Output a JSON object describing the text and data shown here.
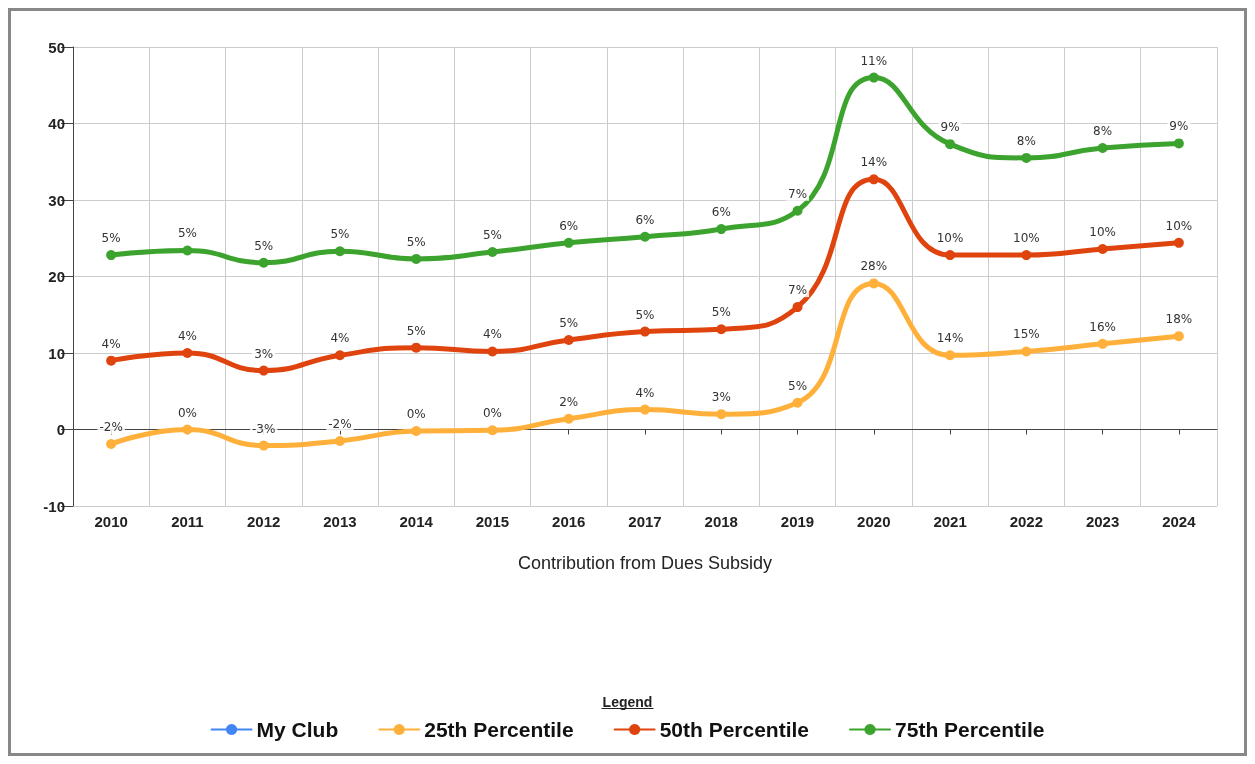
{
  "chart_data": {
    "type": "line",
    "xlabel": "Contribution from Dues Subsidy",
    "legend_title": "Legend",
    "categories": [
      "2010",
      "2011",
      "2012",
      "2013",
      "2014",
      "2015",
      "2016",
      "2017",
      "2018",
      "2019",
      "2020",
      "2021",
      "2022",
      "2023",
      "2024"
    ],
    "ylim": [
      -10,
      50
    ],
    "yticks": [
      -10,
      0,
      10,
      20,
      30,
      40,
      50
    ],
    "grid": true,
    "legend": "bottom",
    "marker": "circle",
    "line_style": "solid",
    "series": [
      {
        "name": "My Club",
        "color": "#4285f4",
        "values": [
          null,
          null,
          null,
          null,
          null,
          null,
          null,
          null,
          null,
          null,
          null,
          null,
          null,
          null,
          null
        ]
      },
      {
        "name": "25th Percentile",
        "color": "#ffb03b",
        "values": [
          -1.9,
          0,
          -2.1,
          -1.5,
          -0.2,
          -0.1,
          1.4,
          2.6,
          2.0,
          3.5,
          19.1,
          9.7,
          10.2,
          11.2,
          12.2
        ]
      },
      {
        "name": "50th Percentile",
        "color": "#e0440e",
        "values": [
          9.0,
          10.0,
          7.7,
          9.7,
          10.7,
          10.2,
          11.7,
          12.8,
          13.1,
          16.0,
          32.7,
          22.8,
          22.8,
          23.6,
          24.4
        ]
      },
      {
        "name": "75th Percentile",
        "color": "#3ca32e",
        "values": [
          22.8,
          23.4,
          21.8,
          23.3,
          22.3,
          23.2,
          24.4,
          25.2,
          26.2,
          28.6,
          46.0,
          37.3,
          35.5,
          36.8,
          37.4
        ]
      }
    ],
    "annotations": [
      {
        "text": "-2%",
        "x": "2010",
        "y": -1.9
      },
      {
        "text": "0%",
        "x": "2011",
        "y": 0
      },
      {
        "text": "-3%",
        "x": "2012",
        "y": -2.1
      },
      {
        "text": "-2%",
        "x": "2013",
        "y": -1.5
      },
      {
        "text": "0%",
        "x": "2014",
        "y": -0.2
      },
      {
        "text": "0%",
        "x": "2015",
        "y": -0.1
      },
      {
        "text": "2%",
        "x": "2016",
        "y": 1.4
      },
      {
        "text": "4%",
        "x": "2017",
        "y": 2.6
      },
      {
        "text": "3%",
        "x": "2018",
        "y": 2.0
      },
      {
        "text": "5%",
        "x": "2019",
        "y": 3.5
      },
      {
        "text": "28%",
        "x": "2020",
        "y": 19.1
      },
      {
        "text": "14%",
        "x": "2021",
        "y": 9.7
      },
      {
        "text": "15%",
        "x": "2022",
        "y": 10.2
      },
      {
        "text": "16%",
        "x": "2023",
        "y": 11.2
      },
      {
        "text": "18%",
        "x": "2024",
        "y": 12.2
      },
      {
        "text": "4%",
        "x": "2010",
        "y": 9.0
      },
      {
        "text": "4%",
        "x": "2011",
        "y": 10.0
      },
      {
        "text": "3%",
        "x": "2012",
        "y": 7.7
      },
      {
        "text": "4%",
        "x": "2013",
        "y": 9.7
      },
      {
        "text": "5%",
        "x": "2014",
        "y": 10.7
      },
      {
        "text": "4%",
        "x": "2015",
        "y": 10.2
      },
      {
        "text": "5%",
        "x": "2016",
        "y": 11.7
      },
      {
        "text": "5%",
        "x": "2017",
        "y": 12.8
      },
      {
        "text": "5%",
        "x": "2018",
        "y": 13.1
      },
      {
        "text": "7%",
        "x": "2019",
        "y": 16.0
      },
      {
        "text": "14%",
        "x": "2020",
        "y": 32.7
      },
      {
        "text": "10%",
        "x": "2021",
        "y": 22.8
      },
      {
        "text": "10%",
        "x": "2022",
        "y": 22.8
      },
      {
        "text": "10%",
        "x": "2023",
        "y": 23.6
      },
      {
        "text": "10%",
        "x": "2024",
        "y": 24.4
      },
      {
        "text": "5%",
        "x": "2010",
        "y": 22.8
      },
      {
        "text": "5%",
        "x": "2011",
        "y": 23.4
      },
      {
        "text": "5%",
        "x": "2012",
        "y": 21.8
      },
      {
        "text": "5%",
        "x": "2013",
        "y": 23.3
      },
      {
        "text": "5%",
        "x": "2014",
        "y": 22.3
      },
      {
        "text": "5%",
        "x": "2015",
        "y": 23.2
      },
      {
        "text": "6%",
        "x": "2016",
        "y": 24.4
      },
      {
        "text": "6%",
        "x": "2017",
        "y": 25.2
      },
      {
        "text": "6%",
        "x": "2018",
        "y": 26.2
      },
      {
        "text": "7%",
        "x": "2019",
        "y": 28.6
      },
      {
        "text": "11%",
        "x": "2020",
        "y": 46.0
      },
      {
        "text": "9%",
        "x": "2021",
        "y": 37.3
      },
      {
        "text": "8%",
        "x": "2022",
        "y": 35.5
      },
      {
        "text": "8%",
        "x": "2023",
        "y": 36.8
      },
      {
        "text": "9%",
        "x": "2024",
        "y": 37.4
      }
    ]
  }
}
